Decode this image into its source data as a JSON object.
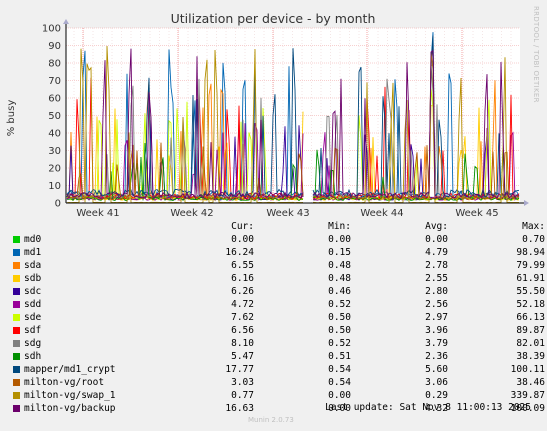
{
  "chart_data": {
    "type": "line",
    "title": "Utilization per device - by month",
    "ylabel": "% busy",
    "ylim": [
      0,
      100
    ],
    "y_ticks": [
      "0",
      "10",
      "20",
      "30",
      "40",
      "50",
      "60",
      "70",
      "80",
      "90",
      "100"
    ],
    "x_ticks": [
      "Week 41",
      "Week 42",
      "Week 43",
      "Week 44",
      "Week 45"
    ],
    "grid": true,
    "columns": [
      "Cur:",
      "Min:",
      "Avg:",
      "Max:"
    ],
    "series": [
      {
        "name": "md0",
        "color": "#00cc00",
        "cur": "0.00",
        "min": "0.00",
        "avg": "0.00",
        "max": "0.70"
      },
      {
        "name": "md1",
        "color": "#0066b3",
        "cur": "16.24",
        "min": "0.15",
        "avg": "4.79",
        "max": "98.94"
      },
      {
        "name": "sda",
        "color": "#ff8000",
        "cur": "6.55",
        "min": "0.48",
        "avg": "2.78",
        "max": "79.99"
      },
      {
        "name": "sdb",
        "color": "#ffcc00",
        "cur": "6.16",
        "min": "0.48",
        "avg": "2.55",
        "max": "61.91"
      },
      {
        "name": "sdc",
        "color": "#330099",
        "cur": "6.26",
        "min": "0.46",
        "avg": "2.80",
        "max": "55.50"
      },
      {
        "name": "sdd",
        "color": "#990099",
        "cur": "4.72",
        "min": "0.52",
        "avg": "2.56",
        "max": "52.18"
      },
      {
        "name": "sde",
        "color": "#ccff00",
        "cur": "7.62",
        "min": "0.50",
        "avg": "2.97",
        "max": "66.13"
      },
      {
        "name": "sdf",
        "color": "#ff0000",
        "cur": "6.56",
        "min": "0.50",
        "avg": "3.96",
        "max": "89.87"
      },
      {
        "name": "sdg",
        "color": "#808080",
        "cur": "8.10",
        "min": "0.52",
        "avg": "3.79",
        "max": "82.01"
      },
      {
        "name": "sdh",
        "color": "#008f00",
        "cur": "5.47",
        "min": "0.51",
        "avg": "2.36",
        "max": "38.39"
      },
      {
        "name": "mapper/md1_crypt",
        "color": "#00487d",
        "cur": "17.77",
        "min": "0.54",
        "avg": "5.60",
        "max": "100.11"
      },
      {
        "name": "milton-vg/root",
        "color": "#b35a00",
        "cur": "3.03",
        "min": "0.54",
        "avg": "3.06",
        "max": "38.46"
      },
      {
        "name": "milton-vg/swap_1",
        "color": "#b38f00",
        "cur": "0.77",
        "min": "0.00",
        "avg": "0.29",
        "max": "339.87"
      },
      {
        "name": "milton-vg/backup",
        "color": "#6b006b",
        "cur": "16.63",
        "min": "0.00",
        "avg": "4.32",
        "max": "100.09"
      }
    ]
  },
  "footer": {
    "last_update": "Last update: Sat Nov  8 11:00:13 2025",
    "version": "Munin 2.0.73",
    "side_credit": "RRDTOOL / TOBI OETIKER"
  }
}
